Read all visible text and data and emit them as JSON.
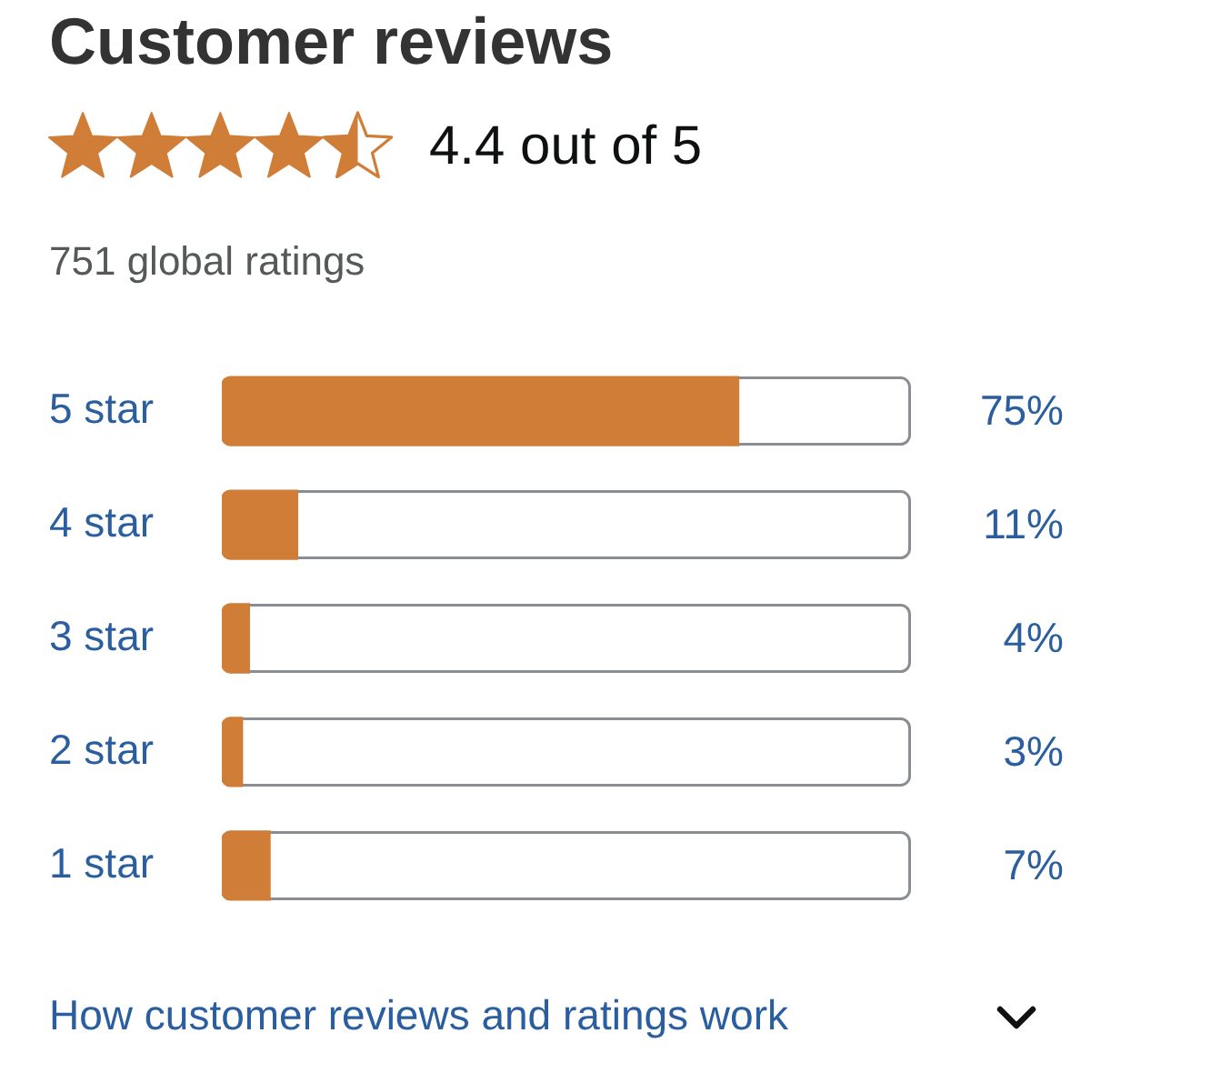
{
  "chart_data": {
    "type": "bar",
    "orientation": "horizontal",
    "title": "Customer reviews",
    "subtitle": "4.4 out of 5",
    "annotations": [
      "751 global ratings",
      "How customer reviews and ratings work"
    ],
    "categories": [
      "5 star",
      "4 star",
      "3 star",
      "2 star",
      "1 star"
    ],
    "values": [
      75,
      11,
      4,
      3,
      7
    ],
    "value_labels": [
      "75%",
      "11%",
      "4%",
      "3%",
      "7%"
    ],
    "color": "#d07d38",
    "xlim": [
      0,
      100
    ],
    "grid": false,
    "legend": false,
    "tick_labels": "y"
  }
}
